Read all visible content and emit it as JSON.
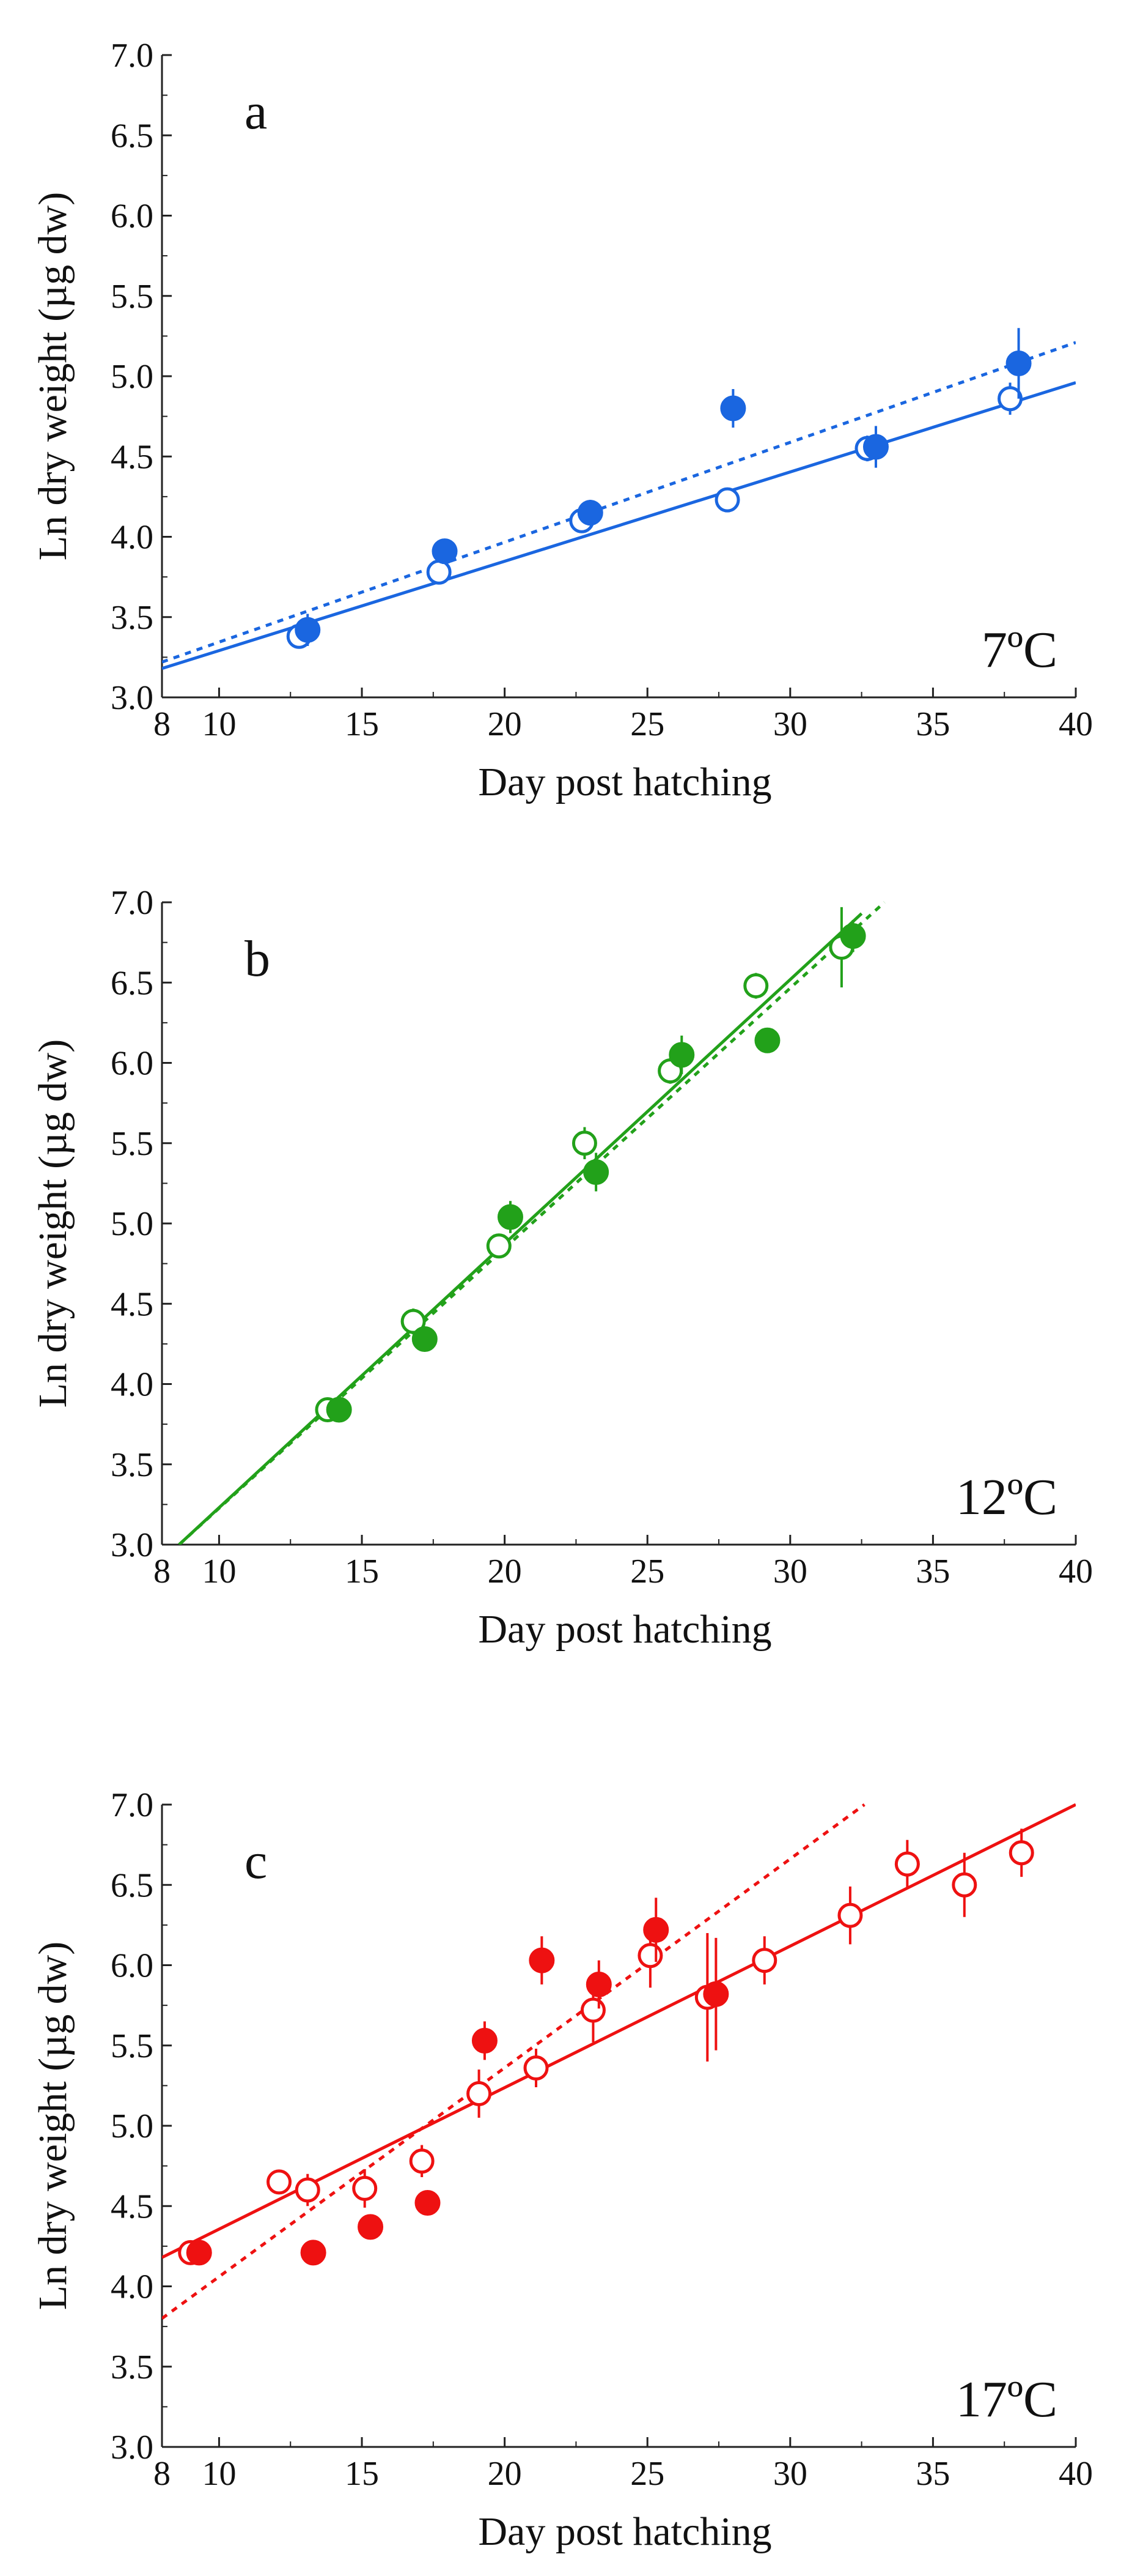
{
  "chart_data": [
    {
      "type": "scatter",
      "panel_label": "a",
      "temperature_label": "7ºC",
      "xlabel": "Day post hatching",
      "ylabel": "Ln dry weight (µg dw)",
      "xlim": [
        8,
        40
      ],
      "ylim": [
        3.0,
        7.0
      ],
      "xticks": [
        8,
        10,
        15,
        20,
        25,
        30,
        35,
        40
      ],
      "yticks": [
        "3.0",
        "3.5",
        "4.0",
        "4.5",
        "5.0",
        "5.5",
        "6.0",
        "6.5",
        "7.0"
      ],
      "color": "#1a66e0",
      "series": [
        {
          "marker": "open",
          "points": [
            {
              "x": 12.8,
              "y": 3.38,
              "err": 0.05
            },
            {
              "x": 17.7,
              "y": 3.78,
              "err": 0.04
            },
            {
              "x": 22.7,
              "y": 4.1,
              "err": 0.06
            },
            {
              "x": 27.8,
              "y": 4.23,
              "err": 0.04
            },
            {
              "x": 32.7,
              "y": 4.55,
              "err": 0.08
            },
            {
              "x": 37.7,
              "y": 4.86,
              "err": 0.1
            }
          ]
        },
        {
          "marker": "filled",
          "points": [
            {
              "x": 13.1,
              "y": 3.42,
              "err": 0.1
            },
            {
              "x": 17.9,
              "y": 3.91,
              "err": 0.05
            },
            {
              "x": 23.0,
              "y": 4.15,
              "err": 0.08
            },
            {
              "x": 28.0,
              "y": 4.8,
              "err": 0.12
            },
            {
              "x": 33.0,
              "y": 4.56,
              "err": 0.13
            },
            {
              "x": 38.0,
              "y": 5.08,
              "err": 0.22
            }
          ]
        }
      ],
      "fits": [
        {
          "style": "solid",
          "x": [
            8,
            40
          ],
          "y": [
            3.18,
            4.96
          ]
        },
        {
          "style": "dotted",
          "x": [
            8,
            40
          ],
          "y": [
            3.22,
            5.21
          ]
        }
      ]
    },
    {
      "type": "scatter",
      "panel_label": "b",
      "temperature_label": "12ºC",
      "xlabel": "Day post hatching",
      "ylabel": "Ln dry weight (µg dw)",
      "xlim": [
        8,
        40
      ],
      "ylim": [
        3.0,
        7.0
      ],
      "xticks": [
        8,
        10,
        15,
        20,
        25,
        30,
        35,
        40
      ],
      "yticks": [
        "3.0",
        "3.5",
        "4.0",
        "4.5",
        "5.0",
        "5.5",
        "6.0",
        "6.5",
        "7.0"
      ],
      "color": "#22a11a",
      "series": [
        {
          "marker": "open",
          "points": [
            {
              "x": 13.8,
              "y": 3.84,
              "err": 0.04
            },
            {
              "x": 16.8,
              "y": 4.39,
              "err": 0.08
            },
            {
              "x": 19.8,
              "y": 4.86,
              "err": 0.05
            },
            {
              "x": 22.8,
              "y": 5.5,
              "err": 0.1
            },
            {
              "x": 25.8,
              "y": 5.95,
              "err": 0.08
            },
            {
              "x": 28.8,
              "y": 6.48,
              "err": 0.08
            },
            {
              "x": 31.8,
              "y": 6.72,
              "err": 0.25
            }
          ]
        },
        {
          "marker": "filled",
          "points": [
            {
              "x": 14.2,
              "y": 3.84,
              "err": 0.04
            },
            {
              "x": 17.2,
              "y": 4.28,
              "err": 0.06
            },
            {
              "x": 20.2,
              "y": 5.04,
              "err": 0.1
            },
            {
              "x": 23.2,
              "y": 5.32,
              "err": 0.12
            },
            {
              "x": 26.2,
              "y": 6.05,
              "err": 0.12
            },
            {
              "x": 29.2,
              "y": 6.14,
              "err": 0.06
            },
            {
              "x": 32.2,
              "y": 6.79,
              "err": 0.1
            }
          ]
        }
      ],
      "fits": [
        {
          "style": "solid",
          "x": [
            8.6,
            32.5
          ],
          "y": [
            3.0,
            6.93
          ]
        },
        {
          "style": "dotted",
          "x": [
            8.6,
            33.3
          ],
          "y": [
            3.0,
            7.0
          ]
        }
      ]
    },
    {
      "type": "scatter",
      "panel_label": "c",
      "temperature_label": "17ºC",
      "xlabel": "Day post hatching",
      "ylabel": "Ln dry weight (µg dw)",
      "xlim": [
        8,
        40
      ],
      "ylim": [
        3.0,
        7.0
      ],
      "xticks": [
        8,
        10,
        15,
        20,
        25,
        30,
        35,
        40
      ],
      "yticks": [
        "3.0",
        "3.5",
        "4.0",
        "4.5",
        "5.0",
        "5.5",
        "6.0",
        "6.5",
        "7.0"
      ],
      "color": "#ee1111",
      "series": [
        {
          "marker": "open",
          "points": [
            {
              "x": 9.0,
              "y": 4.21,
              "err": 0.03
            },
            {
              "x": 12.1,
              "y": 4.65,
              "err": 0.06
            },
            {
              "x": 13.1,
              "y": 4.6,
              "err": 0.1
            },
            {
              "x": 15.1,
              "y": 4.61,
              "err": 0.12
            },
            {
              "x": 17.1,
              "y": 4.78,
              "err": 0.1
            },
            {
              "x": 19.1,
              "y": 5.2,
              "err": 0.15
            },
            {
              "x": 21.1,
              "y": 5.36,
              "err": 0.12
            },
            {
              "x": 23.1,
              "y": 5.72,
              "err": 0.2
            },
            {
              "x": 25.1,
              "y": 6.06,
              "err": 0.2
            },
            {
              "x": 27.1,
              "y": 5.8,
              "err": 0.4
            },
            {
              "x": 29.1,
              "y": 6.03,
              "err": 0.15
            },
            {
              "x": 32.1,
              "y": 6.31,
              "err": 0.18
            },
            {
              "x": 34.1,
              "y": 6.63,
              "err": 0.15
            },
            {
              "x": 36.1,
              "y": 6.5,
              "err": 0.2
            },
            {
              "x": 38.1,
              "y": 6.7,
              "err": 0.15
            }
          ]
        },
        {
          "marker": "filled",
          "points": [
            {
              "x": 9.3,
              "y": 4.21,
              "err": 0.03
            },
            {
              "x": 13.3,
              "y": 4.21,
              "err": 0.04
            },
            {
              "x": 15.3,
              "y": 4.37,
              "err": 0.06
            },
            {
              "x": 17.3,
              "y": 4.52,
              "err": 0.06
            },
            {
              "x": 19.3,
              "y": 5.53,
              "err": 0.12
            },
            {
              "x": 21.3,
              "y": 6.03,
              "err": 0.15
            },
            {
              "x": 23.3,
              "y": 5.88,
              "err": 0.15
            },
            {
              "x": 25.3,
              "y": 6.22,
              "err": 0.2
            },
            {
              "x": 27.4,
              "y": 5.82,
              "err": 0.35
            }
          ]
        }
      ],
      "fits": [
        {
          "style": "solid",
          "x": [
            8,
            40
          ],
          "y": [
            4.18,
            7.0
          ]
        },
        {
          "style": "dotted",
          "x": [
            8,
            32.6
          ],
          "y": [
            3.8,
            7.0
          ]
        }
      ]
    }
  ]
}
